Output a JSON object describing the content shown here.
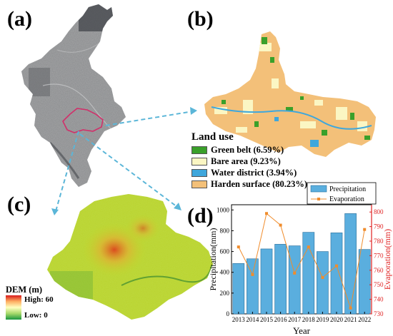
{
  "panels": {
    "a": "(a)",
    "b": "(b)",
    "c": "(c)",
    "d": "(d)"
  },
  "land_use": {
    "title": "Land use",
    "items": [
      {
        "label": "Green belt (6.59%)",
        "color": "#3aa02a"
      },
      {
        "label": "Bare area (9.23%)",
        "color": "#fbf6c3"
      },
      {
        "label": "Water district (3.94%)",
        "color": "#3fa7dc"
      },
      {
        "label": "Harden surface (80.23%)",
        "color": "#f3c079"
      }
    ]
  },
  "dem": {
    "title": "DEM (m)",
    "high": "High: 60",
    "low": "Low: 0",
    "colors": [
      "#d7191c",
      "#fdae61",
      "#ffffbf",
      "#a6d96a",
      "#1a9641"
    ]
  },
  "chart_data": {
    "type": "bar",
    "categories": [
      "2013",
      "2014",
      "2015",
      "2016",
      "2017",
      "2018",
      "2019",
      "2020",
      "2021",
      "2022"
    ],
    "xlabel": "Year",
    "series": [
      {
        "name": "Precipitation",
        "axis": "left",
        "kind": "bar",
        "color": "#5aaede",
        "values": [
          485,
          530,
          625,
          670,
          655,
          785,
          600,
          780,
          965,
          620
        ]
      },
      {
        "name": "Evaporation",
        "axis": "right",
        "kind": "line",
        "color": "#f08c2c",
        "values": [
          776,
          757,
          799,
          791,
          758,
          776,
          755,
          763,
          734,
          788
        ]
      }
    ],
    "ylabel_left": "Precipitation(mm)",
    "ylabel_right": "Evaporation(mm)",
    "ylim_left": [
      0,
      1050
    ],
    "yticks_left": [
      0,
      200,
      400,
      600,
      800,
      1000
    ],
    "ylim_right": [
      730,
      805
    ],
    "yticks_right": [
      730,
      740,
      750,
      760,
      770,
      780,
      790,
      800
    ],
    "legend": "top-right",
    "right_axis_color": "#e02020"
  }
}
